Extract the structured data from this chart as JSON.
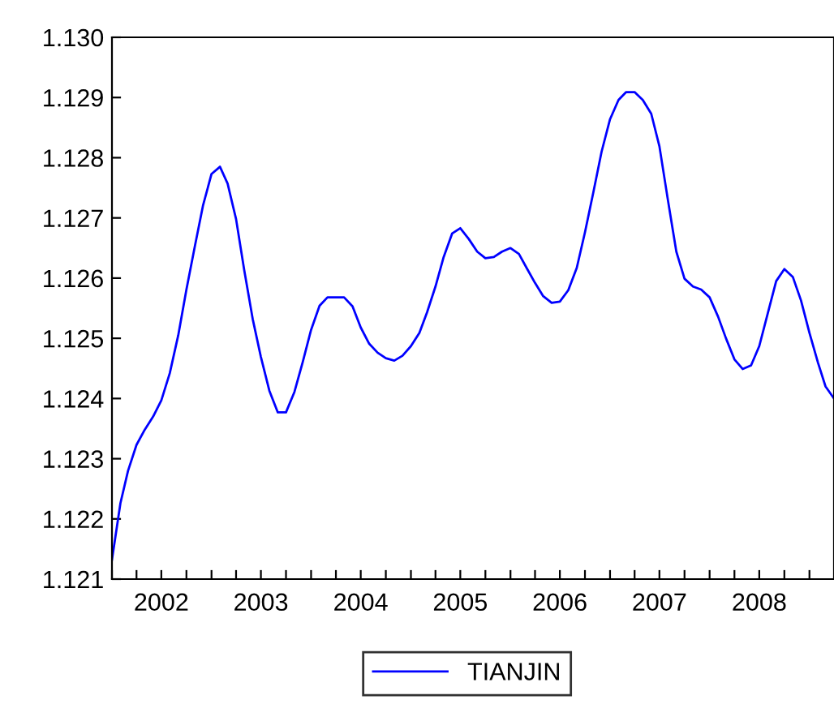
{
  "chart_data": {
    "type": "line",
    "x": [
      "2002-01",
      "2002-02",
      "2002-03",
      "2002-04",
      "2002-05",
      "2002-06",
      "2002-07",
      "2002-08",
      "2002-09",
      "2002-10",
      "2002-11",
      "2002-12",
      "2003-01",
      "2003-02",
      "2003-03",
      "2003-04",
      "2003-05",
      "2003-06",
      "2003-07",
      "2003-08",
      "2003-09",
      "2003-10",
      "2003-11",
      "2003-12",
      "2004-01",
      "2004-02",
      "2004-03",
      "2004-04",
      "2004-05",
      "2004-06",
      "2004-07",
      "2004-08",
      "2004-09",
      "2004-10",
      "2004-11",
      "2004-12",
      "2005-01",
      "2005-02",
      "2005-03",
      "2005-04",
      "2005-05",
      "2005-06",
      "2005-07",
      "2005-08",
      "2005-09",
      "2005-10",
      "2005-11",
      "2005-12",
      "2006-01",
      "2006-02",
      "2006-03",
      "2006-04",
      "2006-05",
      "2006-06",
      "2006-07",
      "2006-08",
      "2006-09",
      "2006-10",
      "2006-11",
      "2006-12",
      "2007-01",
      "2007-02",
      "2007-03",
      "2007-04",
      "2007-05",
      "2007-06",
      "2007-07",
      "2007-08",
      "2007-09",
      "2007-10",
      "2007-11",
      "2007-12",
      "2008-01",
      "2008-02",
      "2008-03",
      "2008-04",
      "2008-05",
      "2008-06",
      "2008-07",
      "2008-08",
      "2008-09",
      "2008-10",
      "2008-11",
      "2008-12",
      "2009-01",
      "2009-02",
      "2009-03",
      "2009-04"
    ],
    "series": [
      {
        "name": "TIANJIN",
        "color": "#0000ff",
        "values": [
          1.12132,
          1.12226,
          1.1228,
          1.12323,
          1.12348,
          1.1237,
          1.12397,
          1.12442,
          1.12505,
          1.12581,
          1.12653,
          1.12721,
          1.12773,
          1.12785,
          1.12757,
          1.12698,
          1.12613,
          1.12532,
          1.12469,
          1.12413,
          1.12377,
          1.12377,
          1.12411,
          1.1246,
          1.12514,
          1.12554,
          1.12568,
          1.12568,
          1.12568,
          1.12553,
          1.12518,
          1.12491,
          1.12476,
          1.12467,
          1.12463,
          1.12471,
          1.12487,
          1.12509,
          1.12543,
          1.12586,
          1.12635,
          1.12674,
          1.12683,
          1.12665,
          1.12644,
          1.12633,
          1.12635,
          1.12644,
          1.1265,
          1.1264,
          1.12617,
          1.12592,
          1.1257,
          1.12559,
          1.12561,
          1.1258,
          1.12617,
          1.12676,
          1.12743,
          1.1281,
          1.12864,
          1.12896,
          1.12909,
          1.12909,
          1.12896,
          1.12873,
          1.12819,
          1.1273,
          1.12644,
          1.12599,
          1.12586,
          1.12581,
          1.12568,
          1.12536,
          1.125,
          1.12465,
          1.12449,
          1.12455,
          1.12487,
          1.12541,
          1.12595,
          1.12615,
          1.12602,
          1.12563,
          1.12509,
          1.1246,
          1.1242,
          1.124
        ]
      }
    ],
    "xlim": [
      "2002-01",
      "2009-04"
    ],
    "xticks": [
      {
        "value": "2002-01",
        "label": null
      },
      {
        "value": "2002-04",
        "label": null
      },
      {
        "value": "2002-07",
        "label": "2002"
      },
      {
        "value": "2002-10",
        "label": null
      },
      {
        "value": "2003-01",
        "label": null
      },
      {
        "value": "2003-04",
        "label": null
      },
      {
        "value": "2003-07",
        "label": "2003"
      },
      {
        "value": "2003-10",
        "label": null
      },
      {
        "value": "2004-01",
        "label": null
      },
      {
        "value": "2004-04",
        "label": null
      },
      {
        "value": "2004-07",
        "label": "2004"
      },
      {
        "value": "2004-10",
        "label": null
      },
      {
        "value": "2005-01",
        "label": null
      },
      {
        "value": "2005-04",
        "label": null
      },
      {
        "value": "2005-07",
        "label": "2005"
      },
      {
        "value": "2005-10",
        "label": null
      },
      {
        "value": "2006-01",
        "label": null
      },
      {
        "value": "2006-04",
        "label": null
      },
      {
        "value": "2006-07",
        "label": "2006"
      },
      {
        "value": "2006-10",
        "label": null
      },
      {
        "value": "2007-01",
        "label": null
      },
      {
        "value": "2007-04",
        "label": null
      },
      {
        "value": "2007-07",
        "label": "2007"
      },
      {
        "value": "2007-10",
        "label": null
      },
      {
        "value": "2008-01",
        "label": null
      },
      {
        "value": "2008-04",
        "label": null
      },
      {
        "value": "2008-07",
        "label": "2008"
      },
      {
        "value": "2008-10",
        "label": null
      },
      {
        "value": "2009-01",
        "label": null
      }
    ],
    "ylim": [
      1.121,
      1.13
    ],
    "yticks": [
      {
        "value": 1.121,
        "label": "1.121"
      },
      {
        "value": 1.122,
        "label": "1.122"
      },
      {
        "value": 1.123,
        "label": "1.123"
      },
      {
        "value": 1.124,
        "label": "1.124"
      },
      {
        "value": 1.125,
        "label": "1.125"
      },
      {
        "value": 1.126,
        "label": "1.126"
      },
      {
        "value": 1.127,
        "label": "1.127"
      },
      {
        "value": 1.128,
        "label": "1.128"
      },
      {
        "value": 1.129,
        "label": "1.129"
      },
      {
        "value": 1.13,
        "label": "1.130"
      }
    ],
    "grid": false,
    "legend": "bottom",
    "marker": "none",
    "line_style": "solid"
  }
}
